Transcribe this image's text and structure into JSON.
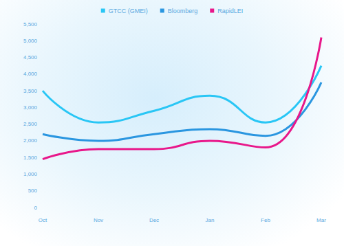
{
  "chart_data": {
    "type": "line",
    "categories": [
      "Oct",
      "Nov",
      "Dec",
      "Jan",
      "Feb",
      "Mar"
    ],
    "series": [
      {
        "name": "GTCC (GMEI)",
        "color": "#29c6f5",
        "values": [
          3500,
          2550,
          2900,
          3350,
          2550,
          4250
        ]
      },
      {
        "name": "Bloomberg",
        "color": "#2a96e0",
        "values": [
          2200,
          2000,
          2200,
          2350,
          2150,
          3750
        ]
      },
      {
        "name": "RapidLEI",
        "color": "#e8178a",
        "values": [
          1450,
          1750,
          1750,
          2000,
          1800,
          5100
        ]
      }
    ],
    "ylim": [
      0,
      5500
    ],
    "yticks": [
      0,
      500,
      {
        "value": 1000,
        "label": "1,000"
      },
      {
        "value": 1500,
        "label": "1,500"
      },
      {
        "value": 2000,
        "label": "2,000"
      },
      {
        "value": 2500,
        "label": "2,500"
      },
      {
        "value": 3000,
        "label": "3,000"
      },
      {
        "value": 3500,
        "label": "3,500"
      },
      {
        "value": 4000,
        "label": "4,000"
      },
      {
        "value": 4500,
        "label": "4,500"
      },
      {
        "value": 5000,
        "label": "5,000"
      },
      {
        "value": 5500,
        "label": "5,500"
      }
    ],
    "grid": false,
    "legend": "top"
  }
}
